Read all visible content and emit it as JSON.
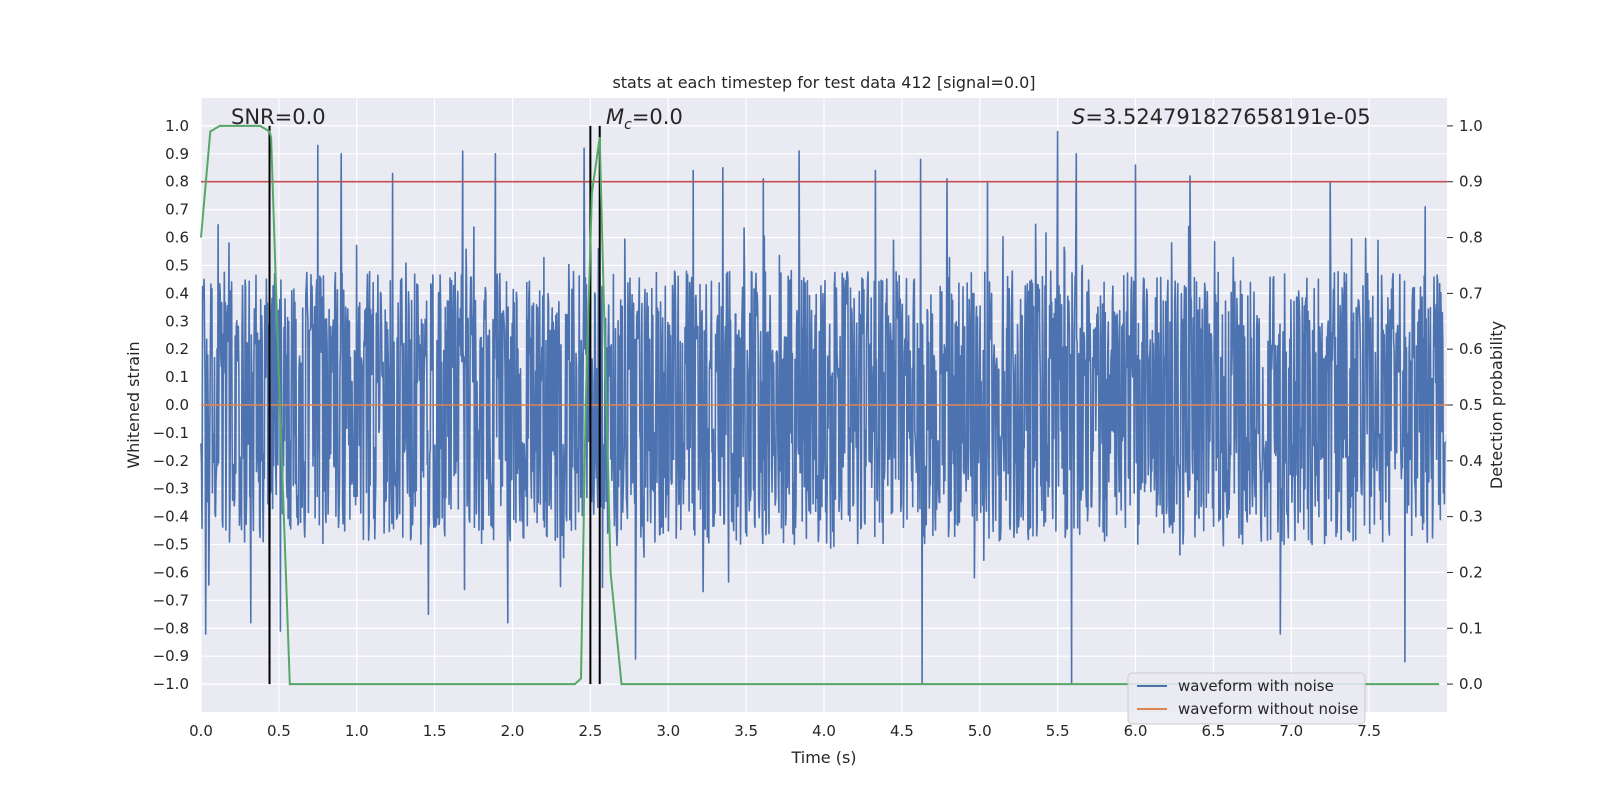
{
  "chart_data": {
    "type": "line",
    "title": "stats at each timestep for test data 412 [signal=0.0]",
    "xlabel": "Time (s)",
    "ylabel": "Whitened strain",
    "y2label": "Detection probability",
    "xlim": [
      0.0,
      8.0
    ],
    "ylim": [
      -1.1,
      1.1
    ],
    "y2lim": [
      -0.05,
      1.05
    ],
    "xticks": [
      "0.0",
      "0.5",
      "1.0",
      "1.5",
      "2.0",
      "2.5",
      "3.0",
      "3.5",
      "4.0",
      "4.5",
      "5.0",
      "5.5",
      "6.0",
      "6.5",
      "7.0",
      "7.5"
    ],
    "yticks": [
      "1.0",
      "0.9",
      "0.8",
      "0.7",
      "0.6",
      "0.5",
      "0.4",
      "0.3",
      "0.2",
      "0.1",
      "0.0",
      "−0.1",
      "−0.2",
      "−0.3",
      "−0.4",
      "−0.5",
      "−0.6",
      "−0.7",
      "−0.8",
      "−0.9",
      "−1.0"
    ],
    "y2ticks": [
      "1.0",
      "0.9",
      "0.8",
      "0.7",
      "0.6",
      "0.5",
      "0.4",
      "0.3",
      "0.2",
      "0.1",
      "0.0"
    ],
    "grid": true,
    "legend_position": "bottom-right",
    "annotations": {
      "snr": "SNR=0.0",
      "mc_symbol": "M",
      "mc_sub": "c",
      "mc_value": "=0.0",
      "s_symbol": "S",
      "s_value": "=3.524791827658191e-05"
    },
    "series": [
      {
        "name": "waveform with noise",
        "color": "#4c72b0",
        "axis": "left",
        "style": "dense noise, approx. uniform in [-0.45, 0.45] with spikes",
        "spikes": [
          {
            "x": 0.03,
            "y": -0.82
          },
          {
            "x": 0.18,
            "y": 0.58
          },
          {
            "x": 0.32,
            "y": -0.78
          },
          {
            "x": 0.44,
            "y": -0.92
          },
          {
            "x": 0.51,
            "y": -0.81
          },
          {
            "x": 0.75,
            "y": 0.93
          },
          {
            "x": 0.9,
            "y": 0.9
          },
          {
            "x": 1.23,
            "y": 0.83
          },
          {
            "x": 1.46,
            "y": -0.75
          },
          {
            "x": 1.68,
            "y": 0.91
          },
          {
            "x": 1.89,
            "y": 0.9
          },
          {
            "x": 1.97,
            "y": -0.78
          },
          {
            "x": 2.46,
            "y": 0.92
          },
          {
            "x": 2.79,
            "y": -0.91
          },
          {
            "x": 3.16,
            "y": 0.84
          },
          {
            "x": 3.35,
            "y": 0.85
          },
          {
            "x": 3.61,
            "y": 0.81
          },
          {
            "x": 3.84,
            "y": 0.91
          },
          {
            "x": 4.33,
            "y": 0.84
          },
          {
            "x": 4.63,
            "y": -1.0
          },
          {
            "x": 4.62,
            "y": 0.88
          },
          {
            "x": 4.79,
            "y": 0.81
          },
          {
            "x": 5.05,
            "y": 0.8
          },
          {
            "x": 5.5,
            "y": 0.98
          },
          {
            "x": 5.59,
            "y": -1.0
          },
          {
            "x": 5.62,
            "y": 0.9
          },
          {
            "x": 6.0,
            "y": 0.86
          },
          {
            "x": 6.35,
            "y": 0.82
          },
          {
            "x": 6.93,
            "y": -0.82
          },
          {
            "x": 7.25,
            "y": 0.8
          },
          {
            "x": 7.73,
            "y": -0.92
          },
          {
            "x": 7.86,
            "y": 0.71
          }
        ]
      },
      {
        "name": "waveform without noise",
        "color": "#dd8452",
        "axis": "left",
        "x": [
          0.0,
          8.0
        ],
        "y": [
          0.0,
          0.0
        ]
      },
      {
        "name": "detection probability",
        "color": "#55a868",
        "axis": "right",
        "in_legend": false,
        "x": [
          0.0,
          0.06,
          0.12,
          0.22,
          0.32,
          0.38,
          0.44,
          0.45,
          0.5,
          0.57,
          1.0,
          1.6,
          2.0,
          2.3,
          2.4,
          2.44,
          2.47,
          2.51,
          2.56,
          2.63,
          2.7,
          3.0,
          4.0,
          5.0,
          6.0,
          7.0,
          7.95
        ],
        "y": [
          0.8,
          0.99,
          1.0,
          1.0,
          1.0,
          1.0,
          0.99,
          0.98,
          0.55,
          0.0,
          0.0,
          0.0,
          0.0,
          0.0,
          0.0,
          0.01,
          0.5,
          0.88,
          0.98,
          0.2,
          0.0,
          0.0,
          0.0,
          0.0,
          0.0,
          0.0,
          0.0
        ]
      },
      {
        "name": "threshold",
        "color": "#c44e52",
        "axis": "right",
        "in_legend": false,
        "x": [
          0.0,
          8.0
        ],
        "y": [
          0.9,
          0.9
        ]
      }
    ],
    "vlines": [
      {
        "x": 0.44,
        "y2range": [
          0.0,
          1.0
        ],
        "color": "#000000"
      },
      {
        "x": 2.5,
        "y2range": [
          0.0,
          1.0
        ],
        "color": "#000000"
      },
      {
        "x": 2.56,
        "y2range": [
          0.0,
          1.0
        ],
        "color": "#000000"
      }
    ],
    "legend": [
      {
        "label": "waveform with noise",
        "color": "#4c72b0"
      },
      {
        "label": "waveform without noise",
        "color": "#dd8452"
      }
    ],
    "hline_right_extra": [
      0.9
    ]
  }
}
